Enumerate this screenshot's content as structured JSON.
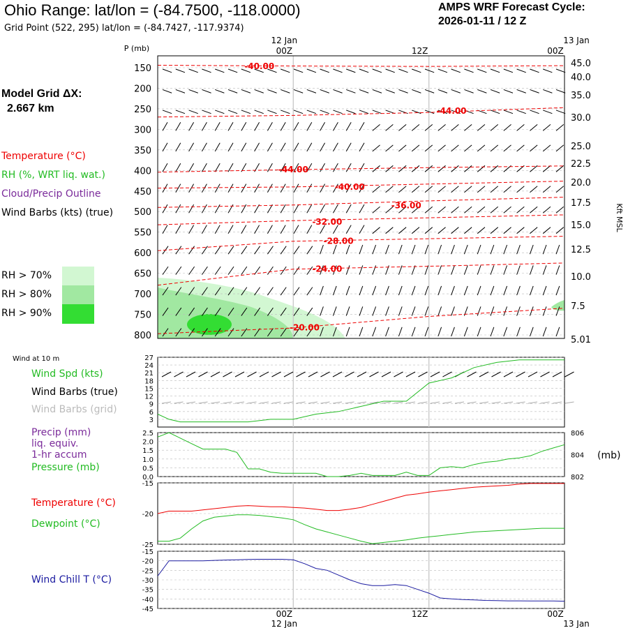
{
  "header": {
    "title": "Ohio Range:  lat/lon = (-84.7500, -118.0000)",
    "subtitle": "Grid Point (522, 295) lat/lon = (-84.7427, -117.9374)",
    "cycle_line1": "AMPS WRF Forecast Cycle:",
    "cycle_line2": "2026-01-11 / 12  Z",
    "model_grid_label": "Model Grid ΔX:",
    "model_grid_value": "2.667 km"
  },
  "time_axis": {
    "ticks": [
      "00Z",
      "12Z",
      "00Z"
    ],
    "dates": [
      "12 Jan",
      "13 Jan"
    ]
  },
  "colors": {
    "temperature": "#ee0000",
    "rh": "#22bb22",
    "cloud": "#7a2a9a",
    "windchill": "#1a1aa0",
    "rh70": "#d2f7d2",
    "rh80": "#a1e8a1",
    "rh90": "#33dd33",
    "grey": "#aaaaaa"
  },
  "legend": {
    "temperature": "Temperature (°C)",
    "rh": "RH (%, WRT liq. wat.)",
    "cloud": "Cloud/Precip Outline",
    "barbs": "Wind Barbs (kts) (true)",
    "rh70": "RH > 70%",
    "rh80": "RH > 80%",
    "rh90": "RH > 90%",
    "wind10m": "Wind at 10 m",
    "wind_spd": "Wind Spd (kts)",
    "barbs_true": "Wind Barbs (true)",
    "barbs_grid": "Wind Barbs (grid)",
    "precip1": "Precip (mm)",
    "precip2": "liq. equiv.",
    "precip3": "1-hr accum",
    "pressure": "Pressure (mb)",
    "temp2": "Temperature (°C)",
    "dew": "Dewpoint (°C)",
    "windchill": "Wind Chill T (°C)"
  },
  "chart_data": [
    {
      "type": "time-height cross section",
      "name": "upper-air",
      "ylabel_left": "P (mb)",
      "ylabel_right": "Kft MSL",
      "pressure_ticks": [
        "150",
        "200",
        "250",
        "300",
        "350",
        "400",
        "450",
        "500",
        "550",
        "600",
        "650",
        "700",
        "750",
        "800"
      ],
      "height_ticks": [
        "45.0",
        "40.0",
        "35.0",
        "30.0",
        "25.0",
        "22.5",
        "20.0",
        "17.5",
        "15.0",
        "12.5",
        "10.0",
        "7.5",
        "5.01"
      ],
      "temperature_contours": [
        {
          "label": "-40.00",
          "hour": 9,
          "pressure": 147,
          "points": [
            [
              0,
              144
            ],
            [
              12,
              146
            ],
            [
              24,
              147
            ],
            [
              36,
              145
            ]
          ]
        },
        {
          "label": "-44.00",
          "hour": 26,
          "pressure": 255,
          "points": [
            [
              0,
              270
            ],
            [
              12,
              266
            ],
            [
              24,
              259
            ],
            [
              36,
              247
            ]
          ]
        },
        {
          "label": "-44.00",
          "hour": 12,
          "pressure": 398,
          "points": [
            [
              0,
              404
            ],
            [
              12,
              398
            ],
            [
              24,
              393
            ],
            [
              36,
              389
            ]
          ]
        },
        {
          "label": "-40.00",
          "hour": 17,
          "pressure": 440,
          "points": [
            [
              0,
              443
            ],
            [
              12,
              440
            ],
            [
              24,
              433
            ],
            [
              36,
              426
            ]
          ]
        },
        {
          "label": "-36.00",
          "hour": 22,
          "pressure": 485,
          "points": [
            [
              0,
              490
            ],
            [
              12,
              484
            ],
            [
              24,
              474
            ],
            [
              36,
              465
            ]
          ]
        },
        {
          "label": "-32.00",
          "hour": 15,
          "pressure": 525,
          "points": [
            [
              0,
              532
            ],
            [
              12,
              522
            ],
            [
              24,
              515
            ],
            [
              36,
              508
            ]
          ]
        },
        {
          "label": "-28.00",
          "hour": 16,
          "pressure": 572,
          "points": [
            [
              0,
              595
            ],
            [
              12,
              572
            ],
            [
              24,
              566
            ],
            [
              36,
              560
            ]
          ]
        },
        {
          "label": "-24.00",
          "hour": 15,
          "pressure": 640,
          "points": [
            [
              0,
              679
            ],
            [
              12,
              640
            ],
            [
              24,
              633
            ],
            [
              36,
              625
            ]
          ]
        },
        {
          "label": "-20.00",
          "hour": 13,
          "pressure": 782,
          "points": [
            [
              0,
              797
            ],
            [
              12,
              783
            ],
            [
              24,
              755
            ],
            [
              36,
              735
            ]
          ]
        }
      ]
    },
    {
      "type": "line",
      "name": "wind-10m",
      "ylabel": "kts",
      "yticks": [
        "3",
        "6",
        "9",
        "12",
        "15",
        "18",
        "21",
        "24",
        "27"
      ],
      "ylim": [
        0,
        27
      ],
      "x_hours": [
        0,
        1,
        2,
        4,
        6,
        8,
        10,
        12,
        14,
        16,
        18,
        20,
        22,
        24,
        26,
        28,
        30,
        32,
        34,
        36
      ],
      "series": [
        {
          "name": "Wind Spd (kts)",
          "values": [
            5,
            3,
            2,
            2,
            2,
            2,
            3,
            3,
            5,
            6,
            8,
            10,
            10,
            17,
            19,
            23,
            25,
            26,
            26,
            26
          ]
        }
      ]
    },
    {
      "type": "line",
      "name": "precip-pressure",
      "yticks_left": [
        "0.0",
        "0.5",
        "1.0",
        "1.5",
        "2.0",
        "2.5"
      ],
      "yticks_right": [
        "806",
        "804",
        "802"
      ],
      "ylabel_right": "(mb)",
      "ylim_left": [
        0,
        2.5
      ],
      "ylim_right": [
        802,
        806
      ],
      "x_hours": [
        0,
        1,
        2,
        3,
        4,
        5,
        6,
        7,
        8,
        9,
        10,
        11,
        12,
        13,
        14,
        15,
        16,
        17,
        18,
        19,
        20,
        21,
        22,
        23,
        24,
        25,
        26,
        27,
        28,
        29,
        30,
        31,
        32,
        33,
        34,
        35,
        36
      ],
      "series": [
        {
          "name": "Pressure (mb)",
          "values": [
            805.6,
            806.0,
            805.5,
            805.0,
            804.5,
            804.5,
            804.5,
            804.2,
            802.7,
            802.7,
            802.4,
            802.3,
            802.3,
            802.3,
            802.3,
            802.0,
            802.0,
            802.1,
            802.3,
            802.1,
            802.1,
            802.1,
            802.4,
            802.1,
            802.1,
            802.8,
            802.9,
            802.8,
            803.1,
            803.3,
            803.4,
            803.6,
            803.7,
            803.9,
            804.3,
            804.6,
            804.9
          ]
        }
      ]
    },
    {
      "type": "line",
      "name": "temperature-dewpoint",
      "yticks": [
        "-15",
        "-20",
        "-25"
      ],
      "ylim": [
        -25,
        -15
      ],
      "x_hours": [
        0,
        1,
        2,
        3,
        4,
        5,
        6,
        7,
        8,
        9,
        10,
        11,
        12,
        13,
        14,
        15,
        16,
        17,
        18,
        19,
        20,
        21,
        22,
        23,
        24,
        25,
        26,
        27,
        28,
        29,
        30,
        31,
        32,
        33,
        34,
        35,
        36
      ],
      "series": [
        {
          "name": "Temperature (°C)",
          "values": [
            -20,
            -19.6,
            -19.6,
            -19.6,
            -19.4,
            -19.2,
            -19.0,
            -18.8,
            -18.7,
            -18.8,
            -18.9,
            -18.9,
            -19,
            -19.1,
            -19.3,
            -19.5,
            -19.5,
            -19.3,
            -19.0,
            -18.5,
            -18.0,
            -17.5,
            -17.0,
            -16.8,
            -16.5,
            -16.3,
            -16.1,
            -15.9,
            -15.7,
            -15.6,
            -15.5,
            -15.4,
            -15.2,
            -15.1,
            -15.1,
            -15.1,
            -15.1
          ]
        },
        {
          "name": "Dewpoint (°C)",
          "values": [
            -24.5,
            -24.5,
            -24,
            -22.5,
            -21.2,
            -20.6,
            -20.4,
            -20.2,
            -20.2,
            -20.3,
            -20.5,
            -20.7,
            -21,
            -21.8,
            -22.5,
            -23.0,
            -23.5,
            -24.0,
            -24.5,
            -24.9,
            -24.7,
            -24.5,
            -24.3,
            -24.0,
            -23.8,
            -23.6,
            -23.4,
            -23.2,
            -23.0,
            -22.9,
            -22.8,
            -22.7,
            -22.6,
            -22.5,
            -22.4,
            -22.4,
            -22.4
          ]
        }
      ]
    },
    {
      "type": "line",
      "name": "wind-chill",
      "yticks": [
        "-15",
        "-20",
        "-25",
        "-30",
        "-35",
        "-40",
        "-45"
      ],
      "ylim": [
        -45,
        -15
      ],
      "x_hours": [
        0,
        1,
        2,
        3,
        4,
        5,
        6,
        7,
        8,
        9,
        10,
        11,
        12,
        13,
        14,
        15,
        16,
        17,
        18,
        19,
        20,
        21,
        22,
        23,
        24,
        25,
        26,
        27,
        28,
        29,
        30,
        31,
        32,
        33,
        34,
        35,
        36
      ],
      "series": [
        {
          "name": "Wind Chill T (°C)",
          "values": [
            -28,
            -20,
            -20,
            -20,
            -20,
            -19.8,
            -19.6,
            -19.5,
            -19.3,
            -19.2,
            -19.2,
            -19.2,
            -19.5,
            -21.5,
            -24.0,
            -25.0,
            -27.5,
            -30.0,
            -32.0,
            -33.0,
            -33.0,
            -32.5,
            -33.0,
            -35.0,
            -37.0,
            -39.5,
            -40.0,
            -40.3,
            -40.5,
            -40.8,
            -40.9,
            -41.0,
            -41.0,
            -41.1,
            -41.1,
            -41.1,
            -41.2
          ]
        }
      ]
    }
  ]
}
